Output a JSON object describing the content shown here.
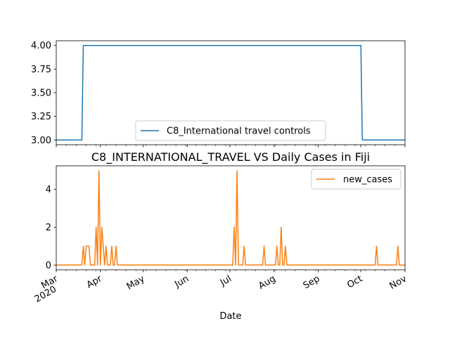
{
  "chart_data": [
    {
      "type": "line",
      "title": "",
      "xlabel": "",
      "ylabel": "",
      "ylim": [
        2.95,
        4.05
      ],
      "y_ticks": [
        "3.00",
        "3.25",
        "3.50",
        "3.75",
        "4.00"
      ],
      "y_tick_values": [
        3.0,
        3.25,
        3.5,
        3.75,
        4.0
      ],
      "x_range": [
        "2020-03-01",
        "2020-11-01"
      ],
      "grid": false,
      "legend_position": "lower center",
      "series": [
        {
          "name": "C8_International travel controls",
          "color": "#1f77b4",
          "points": [
            [
              "2020-03-01",
              3
            ],
            [
              "2020-03-19",
              3
            ],
            [
              "2020-03-20",
              4
            ],
            [
              "2020-10-01",
              4
            ],
            [
              "2020-10-02",
              3
            ],
            [
              "2020-11-01",
              3
            ]
          ]
        }
      ]
    },
    {
      "type": "line",
      "title": "C8_INTERNATIONAL_TRAVEL VS Daily Cases in Fiji",
      "xlabel": "Date",
      "ylabel": "",
      "ylim": [
        -0.25,
        5.25
      ],
      "y_ticks": [
        "0",
        "2",
        "4"
      ],
      "y_tick_values": [
        0,
        2,
        4
      ],
      "x_range": [
        "2020-03-01",
        "2020-11-01"
      ],
      "x_ticks": [
        {
          "label": "Mar",
          "sub": "2020",
          "date": "2020-03-01"
        },
        {
          "label": "Apr",
          "sub": "",
          "date": "2020-04-01"
        },
        {
          "label": "May",
          "sub": "",
          "date": "2020-05-01"
        },
        {
          "label": "Jun",
          "sub": "",
          "date": "2020-06-01"
        },
        {
          "label": "Jul",
          "sub": "",
          "date": "2020-07-01"
        },
        {
          "label": "Aug",
          "sub": "",
          "date": "2020-08-01"
        },
        {
          "label": "Sep",
          "sub": "",
          "date": "2020-09-01"
        },
        {
          "label": "Oct",
          "sub": "",
          "date": "2020-10-01"
        },
        {
          "label": "Nov",
          "sub": "",
          "date": "2020-11-01"
        }
      ],
      "grid": false,
      "legend_position": "upper right",
      "series": [
        {
          "name": "new_cases",
          "color": "#ff7f0e",
          "points": [
            [
              "2020-03-01",
              0
            ],
            [
              "2020-03-19",
              0
            ],
            [
              "2020-03-20",
              1
            ],
            [
              "2020-03-21",
              0
            ],
            [
              "2020-03-22",
              1
            ],
            [
              "2020-03-23",
              1
            ],
            [
              "2020-03-24",
              1
            ],
            [
              "2020-03-25",
              0
            ],
            [
              "2020-03-28",
              0
            ],
            [
              "2020-03-29",
              2
            ],
            [
              "2020-03-30",
              0
            ],
            [
              "2020-03-31",
              5
            ],
            [
              "2020-04-01",
              0
            ],
            [
              "2020-04-02",
              2
            ],
            [
              "2020-04-03",
              1
            ],
            [
              "2020-04-04",
              0
            ],
            [
              "2020-04-05",
              1
            ],
            [
              "2020-04-06",
              0
            ],
            [
              "2020-04-08",
              0
            ],
            [
              "2020-04-09",
              1
            ],
            [
              "2020-04-10",
              0
            ],
            [
              "2020-04-11",
              0
            ],
            [
              "2020-04-12",
              1
            ],
            [
              "2020-04-13",
              0
            ],
            [
              "2020-07-03",
              0
            ],
            [
              "2020-07-04",
              2
            ],
            [
              "2020-07-05",
              0
            ],
            [
              "2020-07-06",
              5
            ],
            [
              "2020-07-07",
              0
            ],
            [
              "2020-07-10",
              0
            ],
            [
              "2020-07-11",
              1
            ],
            [
              "2020-07-12",
              0
            ],
            [
              "2020-07-24",
              0
            ],
            [
              "2020-07-25",
              1
            ],
            [
              "2020-07-26",
              0
            ],
            [
              "2020-08-02",
              0
            ],
            [
              "2020-08-03",
              1
            ],
            [
              "2020-08-04",
              0
            ],
            [
              "2020-08-05",
              0
            ],
            [
              "2020-08-06",
              2
            ],
            [
              "2020-08-07",
              0
            ],
            [
              "2020-08-08",
              0
            ],
            [
              "2020-08-09",
              1
            ],
            [
              "2020-08-10",
              0
            ],
            [
              "2020-10-11",
              0
            ],
            [
              "2020-10-12",
              1
            ],
            [
              "2020-10-13",
              0
            ],
            [
              "2020-10-26",
              0
            ],
            [
              "2020-10-27",
              1
            ],
            [
              "2020-10-28",
              0
            ],
            [
              "2020-11-01",
              0
            ]
          ]
        }
      ]
    }
  ]
}
